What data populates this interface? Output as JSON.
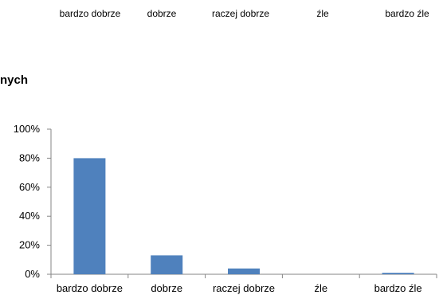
{
  "top_strip": {
    "labels": [
      "bardzo dobrze",
      "dobrze",
      "raczej dobrze",
      "źle",
      "bardzo źle"
    ]
  },
  "heading": "nych",
  "chart_data": {
    "type": "bar",
    "categories": [
      "bardzo dobrze",
      "dobrze",
      "raczej dobrze",
      "źle",
      "bardzo źle"
    ],
    "values": [
      80,
      13,
      4,
      0,
      1
    ],
    "ylim": [
      0,
      100
    ],
    "yticks": [
      "0%",
      "20%",
      "40%",
      "60%",
      "80%",
      "100%"
    ],
    "bar_color": "#4f81bd",
    "grid": false,
    "legend": "none"
  }
}
